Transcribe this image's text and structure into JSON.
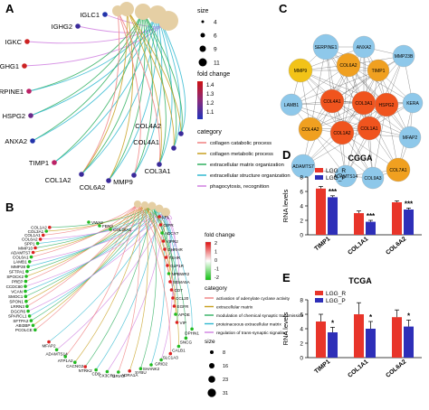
{
  "panels": {
    "A": "A",
    "B": "B",
    "C": "C",
    "D": "D",
    "E": "E"
  },
  "panelA": {
    "genes": [
      {
        "name": "IGLC1",
        "color": "#2233aa"
      },
      {
        "name": "IGHG2",
        "color": "#3a2a9a"
      },
      {
        "name": "IGKC",
        "color": "#cc2222"
      },
      {
        "name": "IGHG1",
        "color": "#cc2222"
      },
      {
        "name": "SERPINE1",
        "color": "#bb2266"
      },
      {
        "name": "HSPG2",
        "color": "#6a2a8a"
      },
      {
        "name": "ANXA2",
        "color": "#2233aa"
      },
      {
        "name": "TIMP1",
        "color": "#bb2266"
      },
      {
        "name": "COL1A2",
        "color": "#3a2a9a"
      },
      {
        "name": "COL6A2",
        "color": "#3a2a9a"
      },
      {
        "name": "MMP9",
        "color": "#3a2a9a"
      },
      {
        "name": "COL3A1",
        "color": "#3a2a9a"
      },
      {
        "name": "COL4A1",
        "color": "#3a2a9a"
      },
      {
        "name": "COL4A2",
        "color": "#3a2a9a"
      }
    ],
    "size_title": "size",
    "size_values": [
      "4",
      "6",
      "9",
      "11"
    ],
    "fc_title": "fold change",
    "fc_ticks": [
      "1.4",
      "1.3",
      "1.2",
      "1.1"
    ],
    "category_title": "category",
    "categories": [
      {
        "label": "collagen catabolic process",
        "color": "#f08080"
      },
      {
        "label": "collagen metabolic process",
        "color": "#c8a020"
      },
      {
        "label": "extracellular matrix organization",
        "color": "#30b060"
      },
      {
        "label": "extracellular structure organization",
        "color": "#30b8d0"
      },
      {
        "label": "phagocytosis, recognition",
        "color": "#d080e0"
      }
    ]
  },
  "panelB": {
    "left_genes": [
      "PCOLCE",
      "ABI3BP",
      "SFTPA2",
      "SPARCL1",
      "DGCR6",
      "LRRN3",
      "SPON1",
      "SMOC1",
      "VCAN",
      "CCDC80",
      "PREP",
      "SPOCK2",
      "SFTPA1",
      "MMP28",
      "LAMB1",
      "COL6A1",
      "ADAMTS7",
      "MMP10",
      "SPP1",
      "COL6A2",
      "COL1A1",
      "COL3A1",
      "COL1A2"
    ],
    "left_extra": [
      "VWA2",
      "FBN3",
      "COL28A1"
    ],
    "bottom_genes": [
      "MFAP2",
      "ADAMTS14",
      "ATP1A2",
      "CACNG2",
      "NTRK2",
      "CD8",
      "CX3CR1",
      "GRIA3",
      "ADRA1A",
      "SYBU",
      "SHANK2",
      "GRID2",
      "SLC1A3",
      "CALB1",
      "SNCG",
      "DPHN1"
    ],
    "top_genes": [
      "LPL",
      "GIPR",
      "ADCY7",
      "VIPR2",
      "GHRHR",
      "TSHR",
      "GLP1R",
      "NPBWR2",
      "SEMA5A",
      "CD7",
      "CCL20",
      "EGFR",
      "APOE",
      "VIP"
    ],
    "fc_title": "fold change",
    "fc_ticks": [
      "2",
      "1",
      "0",
      "-1",
      "-2"
    ],
    "category_title": "category",
    "categories": [
      {
        "label": "activation of adenylate cyclase activity",
        "color": "#f08080"
      },
      {
        "label": "extracellular matrix",
        "color": "#c8a020"
      },
      {
        "label": "modulation of chemical synaptic transmission",
        "color": "#30b060"
      },
      {
        "label": "proteinaceous extracellular matrix",
        "color": "#30b8d0"
      },
      {
        "label": "regulation of trans-synaptic signaling",
        "color": "#d080e0"
      }
    ],
    "size_title": "size",
    "size_values": [
      "8",
      "16",
      "23",
      "31"
    ]
  },
  "panelC": {
    "nodes": [
      {
        "name": "SERPINE1",
        "color": "#8ec8ea"
      },
      {
        "name": "ANXA2",
        "color": "#8ec8ea"
      },
      {
        "name": "MMP23B",
        "color": "#8ec8ea"
      },
      {
        "name": "MMP9",
        "color": "#f2c318"
      },
      {
        "name": "COL6A2",
        "color": "#f0a020"
      },
      {
        "name": "TIMP1",
        "color": "#f0a020"
      },
      {
        "name": "LAMB1",
        "color": "#8ec8ea"
      },
      {
        "name": "COL4A1",
        "color": "#f0541e"
      },
      {
        "name": "COL3A1",
        "color": "#f0541e"
      },
      {
        "name": "HSPG2",
        "color": "#f0541e"
      },
      {
        "name": "KERA",
        "color": "#8ec8ea"
      },
      {
        "name": "COL4A2",
        "color": "#f0a020"
      },
      {
        "name": "COL1A2",
        "color": "#f0541e"
      },
      {
        "name": "COL1A1",
        "color": "#f0541e"
      },
      {
        "name": "MFAP2",
        "color": "#8ec8ea"
      },
      {
        "name": "ADAMTS7",
        "color": "#8ec8ea"
      },
      {
        "name": "COL7A1",
        "color": "#f0a020"
      },
      {
        "name": "ADAMTS14",
        "color": "#8ec8ea"
      },
      {
        "name": "COL9A3",
        "color": "#8ec8ea"
      }
    ]
  },
  "panelD": {
    "title": "CGGA",
    "ylabel": "RNA levels",
    "legend": [
      "LGG_R",
      "LGG_P"
    ],
    "colors": [
      "#e8352a",
      "#2e2fb8"
    ],
    "yticks": [
      "0",
      "2",
      "4",
      "6",
      "8"
    ],
    "sig": [
      "***",
      "***",
      "***"
    ]
  },
  "panelE": {
    "title": "TCGA",
    "ylabel": "RNA levels",
    "legend": [
      "LGG_R",
      "LGG_P"
    ],
    "colors": [
      "#e8352a",
      "#2e2fb8"
    ],
    "yticks": [
      "0",
      "2",
      "4",
      "6",
      "8"
    ],
    "sig": [
      "*",
      "*",
      "*"
    ]
  },
  "chart_data": [
    {
      "type": "bar",
      "title": "CGGA",
      "ylabel": "RNA levels",
      "categories": [
        "TIMP1",
        "COL1A1",
        "COL6A2"
      ],
      "series": [
        {
          "name": "LGG_R",
          "values": [
            6.4,
            3.0,
            4.5
          ]
        },
        {
          "name": "LGG_P",
          "values": [
            5.2,
            1.8,
            3.5
          ]
        }
      ],
      "errors": [
        [
          0.3,
          0.3,
          0.2
        ],
        [
          0.2,
          0.2,
          0.2
        ]
      ],
      "ylim": [
        0,
        8
      ]
    },
    {
      "type": "bar",
      "title": "TCGA",
      "ylabel": "RNA levels",
      "categories": [
        "TIMP1",
        "COL1A1",
        "COL6A2"
      ],
      "series": [
        {
          "name": "LGG_R",
          "values": [
            5.0,
            6.0,
            5.6
          ]
        },
        {
          "name": "LGG_P",
          "values": [
            3.5,
            4.0,
            4.3
          ]
        }
      ],
      "errors": [
        [
          1.0,
          1.6,
          1.0
        ],
        [
          0.7,
          1.0,
          0.9
        ]
      ],
      "ylim": [
        0,
        8
      ]
    }
  ]
}
